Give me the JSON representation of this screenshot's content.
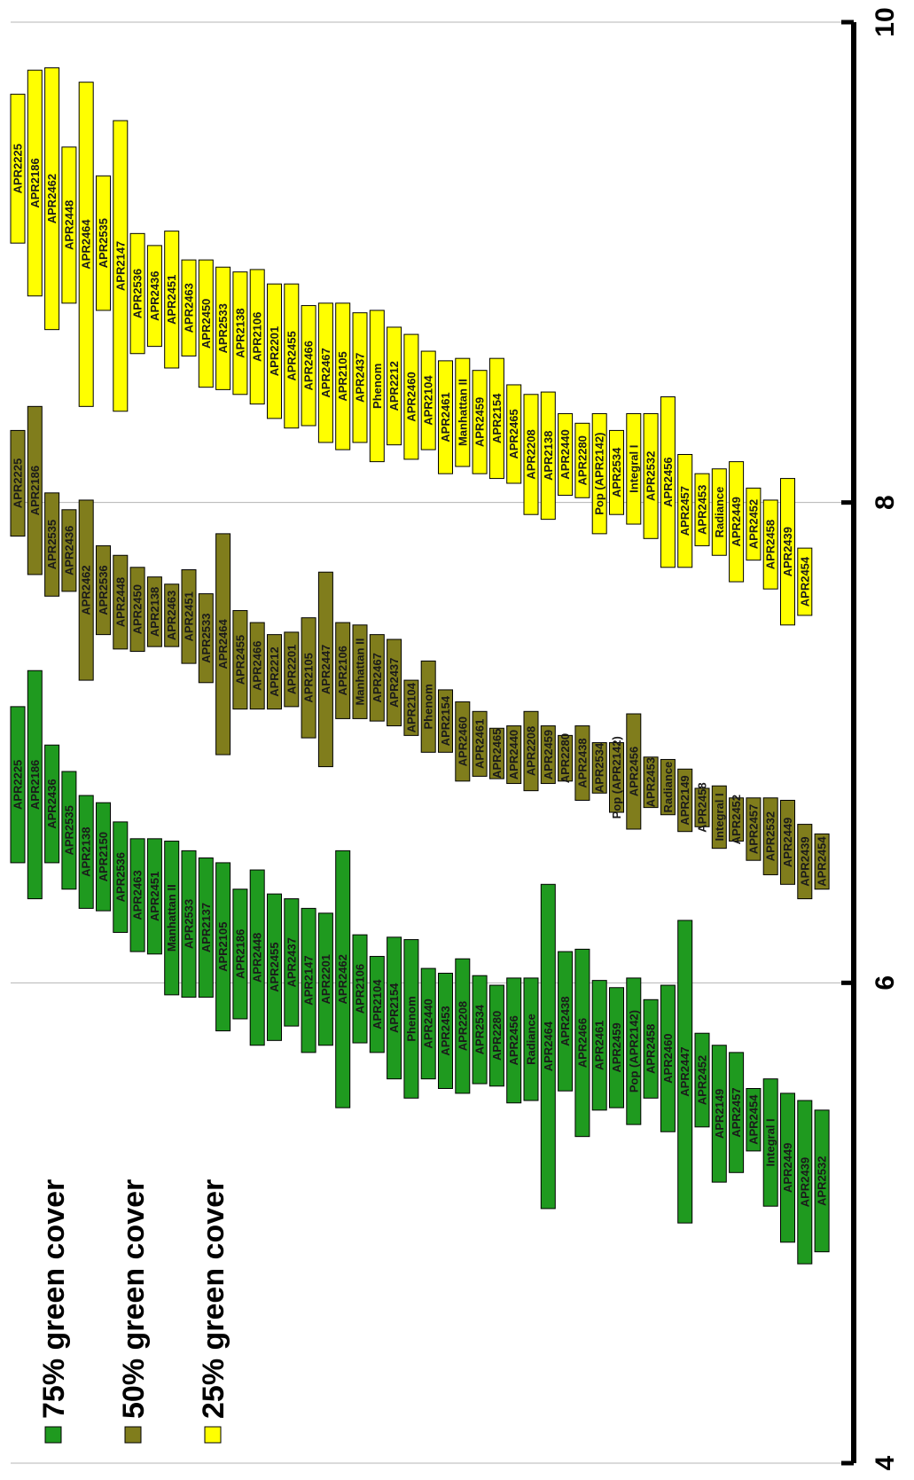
{
  "chart_data": {
    "type": "bar",
    "orientation": "rotated-90-ccw",
    "xlim": [
      4,
      10
    ],
    "ticks": [
      4,
      6,
      8,
      10
    ],
    "tick_labels": [
      "4",
      "6",
      "8",
      "10"
    ],
    "grid": true,
    "legend_position": "bottom-left",
    "series": [
      {
        "name": "75% green cover",
        "color": "#1f9a1f",
        "bars": [
          {
            "label": "APR2225",
            "start": 6.5,
            "end": 7.15
          },
          {
            "label": "APR2186",
            "start": 6.35,
            "end": 7.3
          },
          {
            "label": "APR2436",
            "start": 6.5,
            "end": 6.99
          },
          {
            "label": "APR2535",
            "start": 6.39,
            "end": 6.88
          },
          {
            "label": "APR2138",
            "start": 6.31,
            "end": 6.78
          },
          {
            "label": "APR2150",
            "start": 6.3,
            "end": 6.75
          },
          {
            "label": "APR2536",
            "start": 6.21,
            "end": 6.67
          },
          {
            "label": "APR2463",
            "start": 6.13,
            "end": 6.6
          },
          {
            "label": "APR2451",
            "start": 6.12,
            "end": 6.6
          },
          {
            "label": "Manhattan II",
            "start": 5.95,
            "end": 6.59
          },
          {
            "label": "APR2533",
            "start": 5.94,
            "end": 6.55
          },
          {
            "label": "APR2137",
            "start": 5.94,
            "end": 6.52
          },
          {
            "label": "APR2105",
            "start": 5.8,
            "end": 6.5
          },
          {
            "label": "APR2186",
            "start": 5.85,
            "end": 6.39
          },
          {
            "label": "APR2448",
            "start": 5.74,
            "end": 6.47
          },
          {
            "label": "APR2455",
            "start": 5.76,
            "end": 6.37
          },
          {
            "label": "APR2437",
            "start": 5.82,
            "end": 6.35
          },
          {
            "label": "APR2147",
            "start": 5.71,
            "end": 6.31
          },
          {
            "label": "APR2201",
            "start": 5.74,
            "end": 6.29
          },
          {
            "label": "APR2462",
            "start": 5.48,
            "end": 6.55
          },
          {
            "label": "APR2106",
            "start": 5.75,
            "end": 6.2
          },
          {
            "label": "APR2104",
            "start": 5.71,
            "end": 6.11
          },
          {
            "label": "APR2154",
            "start": 5.6,
            "end": 6.19
          },
          {
            "label": "Phenom",
            "start": 5.52,
            "end": 6.18
          },
          {
            "label": "APR2440",
            "start": 5.6,
            "end": 6.06
          },
          {
            "label": "APR2453",
            "start": 5.56,
            "end": 6.04
          },
          {
            "label": "APR2208",
            "start": 5.54,
            "end": 6.1
          },
          {
            "label": "APR2534",
            "start": 5.58,
            "end": 6.03
          },
          {
            "label": "APR2280",
            "start": 5.57,
            "end": 5.99
          },
          {
            "label": "APR2456",
            "start": 5.5,
            "end": 6.02
          },
          {
            "label": "Radiance",
            "start": 5.51,
            "end": 6.02
          },
          {
            "label": "APR2464",
            "start": 5.06,
            "end": 6.41
          },
          {
            "label": "APR2438",
            "start": 5.55,
            "end": 6.13
          },
          {
            "label": "APR2466",
            "start": 5.36,
            "end": 6.14
          },
          {
            "label": "APR2461",
            "start": 5.47,
            "end": 6.01
          },
          {
            "label": "APR2459",
            "start": 5.48,
            "end": 5.98
          },
          {
            "label": "Pop (APR2142)",
            "start": 5.41,
            "end": 6.02
          },
          {
            "label": "APR2458",
            "start": 5.52,
            "end": 5.93
          },
          {
            "label": "APR2460",
            "start": 5.38,
            "end": 5.99
          },
          {
            "label": "APR2447",
            "start": 5.0,
            "end": 6.26
          },
          {
            "label": "APR2452",
            "start": 5.4,
            "end": 5.79
          },
          {
            "label": "APR2149",
            "start": 5.17,
            "end": 5.74
          },
          {
            "label": "APR2457",
            "start": 5.21,
            "end": 5.71
          },
          {
            "label": "APR2454",
            "start": 5.3,
            "end": 5.56
          },
          {
            "label": "Integral I",
            "start": 5.07,
            "end": 5.6
          },
          {
            "label": "APR2449",
            "start": 4.92,
            "end": 5.54
          },
          {
            "label": "APR2439",
            "start": 4.83,
            "end": 5.51
          },
          {
            "label": "APR2532",
            "start": 4.88,
            "end": 5.47
          }
        ]
      },
      {
        "name": "50% green cover",
        "color": "#807d1c",
        "bars": [
          {
            "label": "APR2225",
            "start": 7.86,
            "end": 8.3
          },
          {
            "label": "APR2186",
            "start": 7.7,
            "end": 8.4
          },
          {
            "label": "APR2535",
            "start": 7.61,
            "end": 8.04
          },
          {
            "label": "APR2436",
            "start": 7.63,
            "end": 7.97
          },
          {
            "label": "APR2462",
            "start": 7.26,
            "end": 8.01
          },
          {
            "label": "APR2536",
            "start": 7.45,
            "end": 7.82
          },
          {
            "label": "APR2448",
            "start": 7.39,
            "end": 7.78
          },
          {
            "label": "APR2450",
            "start": 7.38,
            "end": 7.73
          },
          {
            "label": "APR2138",
            "start": 7.4,
            "end": 7.69
          },
          {
            "label": "APR2463",
            "start": 7.4,
            "end": 7.66
          },
          {
            "label": "APR2451",
            "start": 7.33,
            "end": 7.72
          },
          {
            "label": "APR2533",
            "start": 7.25,
            "end": 7.62
          },
          {
            "label": "APR2464",
            "start": 6.95,
            "end": 7.87
          },
          {
            "label": "APR2455",
            "start": 7.14,
            "end": 7.55
          },
          {
            "label": "APR2466",
            "start": 7.14,
            "end": 7.5
          },
          {
            "label": "APR2212",
            "start": 7.14,
            "end": 7.45
          },
          {
            "label": "APR2201",
            "start": 7.15,
            "end": 7.46
          },
          {
            "label": "APR2105",
            "start": 7.02,
            "end": 7.52
          },
          {
            "label": "APR2447",
            "start": 6.9,
            "end": 7.71
          },
          {
            "label": "APR2106",
            "start": 7.1,
            "end": 7.5
          },
          {
            "label": "Manhattan II",
            "start": 7.1,
            "end": 7.49
          },
          {
            "label": "APR2467",
            "start": 7.09,
            "end": 7.45
          },
          {
            "label": "APR2437",
            "start": 7.07,
            "end": 7.43
          },
          {
            "label": "APR2104",
            "start": 7.03,
            "end": 7.26
          },
          {
            "label": "Phenom",
            "start": 6.96,
            "end": 7.34
          },
          {
            "label": "APR2154",
            "start": 6.96,
            "end": 7.22
          },
          {
            "label": "APR2460",
            "start": 6.84,
            "end": 7.17
          },
          {
            "label": "APR2461",
            "start": 6.86,
            "end": 7.13
          },
          {
            "label": "APR2465",
            "start": 6.85,
            "end": 7.06
          },
          {
            "label": "APR2440",
            "start": 6.83,
            "end": 7.07
          },
          {
            "label": "APR2208",
            "start": 6.8,
            "end": 7.13
          },
          {
            "label": "APR2459",
            "start": 6.83,
            "end": 7.07
          },
          {
            "label": "APR2280",
            "start": 6.84,
            "end": 7.03
          },
          {
            "label": "APR2438",
            "start": 6.76,
            "end": 7.07
          },
          {
            "label": "APR2534",
            "start": 6.79,
            "end": 7.0
          },
          {
            "label": "Pop (APR2142)",
            "start": 6.71,
            "end": 7.0
          },
          {
            "label": "APR2456",
            "start": 6.64,
            "end": 7.12
          },
          {
            "label": "APR2453",
            "start": 6.73,
            "end": 6.94
          },
          {
            "label": "Radiance",
            "start": 6.7,
            "end": 6.93
          },
          {
            "label": "APR2149",
            "start": 6.63,
            "end": 6.89
          },
          {
            "label": "APR2458",
            "start": 6.65,
            "end": 6.81
          },
          {
            "label": "Integral I",
            "start": 6.56,
            "end": 6.82
          },
          {
            "label": "APR2452",
            "start": 6.59,
            "end": 6.77
          },
          {
            "label": "APR2457",
            "start": 6.51,
            "end": 6.77
          },
          {
            "label": "APR2532",
            "start": 6.45,
            "end": 6.77
          },
          {
            "label": "APR2449",
            "start": 6.41,
            "end": 6.76
          },
          {
            "label": "APR2439",
            "start": 6.35,
            "end": 6.66
          },
          {
            "label": "APR2454",
            "start": 6.39,
            "end": 6.62
          }
        ]
      },
      {
        "name": "25% green cover",
        "color": "#ffff00",
        "bars": [
          {
            "label": "APR2225",
            "start": 9.08,
            "end": 9.7
          },
          {
            "label": "APR2186",
            "start": 8.86,
            "end": 9.8
          },
          {
            "label": "APR2462",
            "start": 8.72,
            "end": 9.81
          },
          {
            "label": "APR2448",
            "start": 8.83,
            "end": 9.48
          },
          {
            "label": "APR2464",
            "start": 8.4,
            "end": 9.75
          },
          {
            "label": "APR2535",
            "start": 8.8,
            "end": 9.36
          },
          {
            "label": "APR2147",
            "start": 8.38,
            "end": 9.59
          },
          {
            "label": "APR2536",
            "start": 8.62,
            "end": 9.12
          },
          {
            "label": "APR2436",
            "start": 8.65,
            "end": 9.07
          },
          {
            "label": "APR2451",
            "start": 8.56,
            "end": 9.13
          },
          {
            "label": "APR2463",
            "start": 8.61,
            "end": 9.01
          },
          {
            "label": "APR2450",
            "start": 8.48,
            "end": 9.01
          },
          {
            "label": "APR2533",
            "start": 8.47,
            "end": 8.98
          },
          {
            "label": "APR2138",
            "start": 8.45,
            "end": 8.96
          },
          {
            "label": "APR2106",
            "start": 8.41,
            "end": 8.97
          },
          {
            "label": "APR2201",
            "start": 8.35,
            "end": 8.91
          },
          {
            "label": "APR2455",
            "start": 8.31,
            "end": 8.91
          },
          {
            "label": "APR2466",
            "start": 8.32,
            "end": 8.82
          },
          {
            "label": "APR2467",
            "start": 8.25,
            "end": 8.83
          },
          {
            "label": "APR2105",
            "start": 8.22,
            "end": 8.83
          },
          {
            "label": "APR2437",
            "start": 8.25,
            "end": 8.79
          },
          {
            "label": "Phenom",
            "start": 8.17,
            "end": 8.8
          },
          {
            "label": "APR2212",
            "start": 8.24,
            "end": 8.73
          },
          {
            "label": "APR2460",
            "start": 8.18,
            "end": 8.7
          },
          {
            "label": "APR2104",
            "start": 8.22,
            "end": 8.63
          },
          {
            "label": "APR2461",
            "start": 8.12,
            "end": 8.59
          },
          {
            "label": "Manhattan II",
            "start": 8.15,
            "end": 8.6
          },
          {
            "label": "APR2459",
            "start": 8.12,
            "end": 8.55
          },
          {
            "label": "APR2154",
            "start": 8.1,
            "end": 8.6
          },
          {
            "label": "APR2465",
            "start": 8.08,
            "end": 8.49
          },
          {
            "label": "APR2208",
            "start": 7.95,
            "end": 8.45
          },
          {
            "label": "APR2138",
            "start": 7.93,
            "end": 8.46
          },
          {
            "label": "APR2440",
            "start": 8.03,
            "end": 8.37
          },
          {
            "label": "APR2280",
            "start": 8.02,
            "end": 8.33
          },
          {
            "label": "Pop (APR2142)",
            "start": 7.87,
            "end": 8.37
          },
          {
            "label": "APR2534",
            "start": 7.95,
            "end": 8.3
          },
          {
            "label": "Integral I",
            "start": 7.91,
            "end": 8.37
          },
          {
            "label": "APR2532",
            "start": 7.85,
            "end": 8.37
          },
          {
            "label": "APR2456",
            "start": 7.73,
            "end": 8.44
          },
          {
            "label": "APR2457",
            "start": 7.73,
            "end": 8.2
          },
          {
            "label": "APR2453",
            "start": 7.82,
            "end": 8.12
          },
          {
            "label": "Radiance",
            "start": 7.78,
            "end": 8.14
          },
          {
            "label": "APR2449",
            "start": 7.67,
            "end": 8.17
          },
          {
            "label": "APR2452",
            "start": 7.76,
            "end": 8.06
          },
          {
            "label": "APR2458",
            "start": 7.64,
            "end": 8.01
          },
          {
            "label": "APR2439",
            "start": 7.49,
            "end": 8.1
          },
          {
            "label": "APR2454",
            "start": 7.53,
            "end": 7.81
          }
        ]
      }
    ]
  },
  "legend": {
    "items": [
      {
        "label": "75% green cover",
        "color": "#1f9a1f"
      },
      {
        "label": "50% green cover",
        "color": "#807d1c"
      },
      {
        "label": "25% green cover",
        "color": "#ffff00"
      }
    ]
  }
}
